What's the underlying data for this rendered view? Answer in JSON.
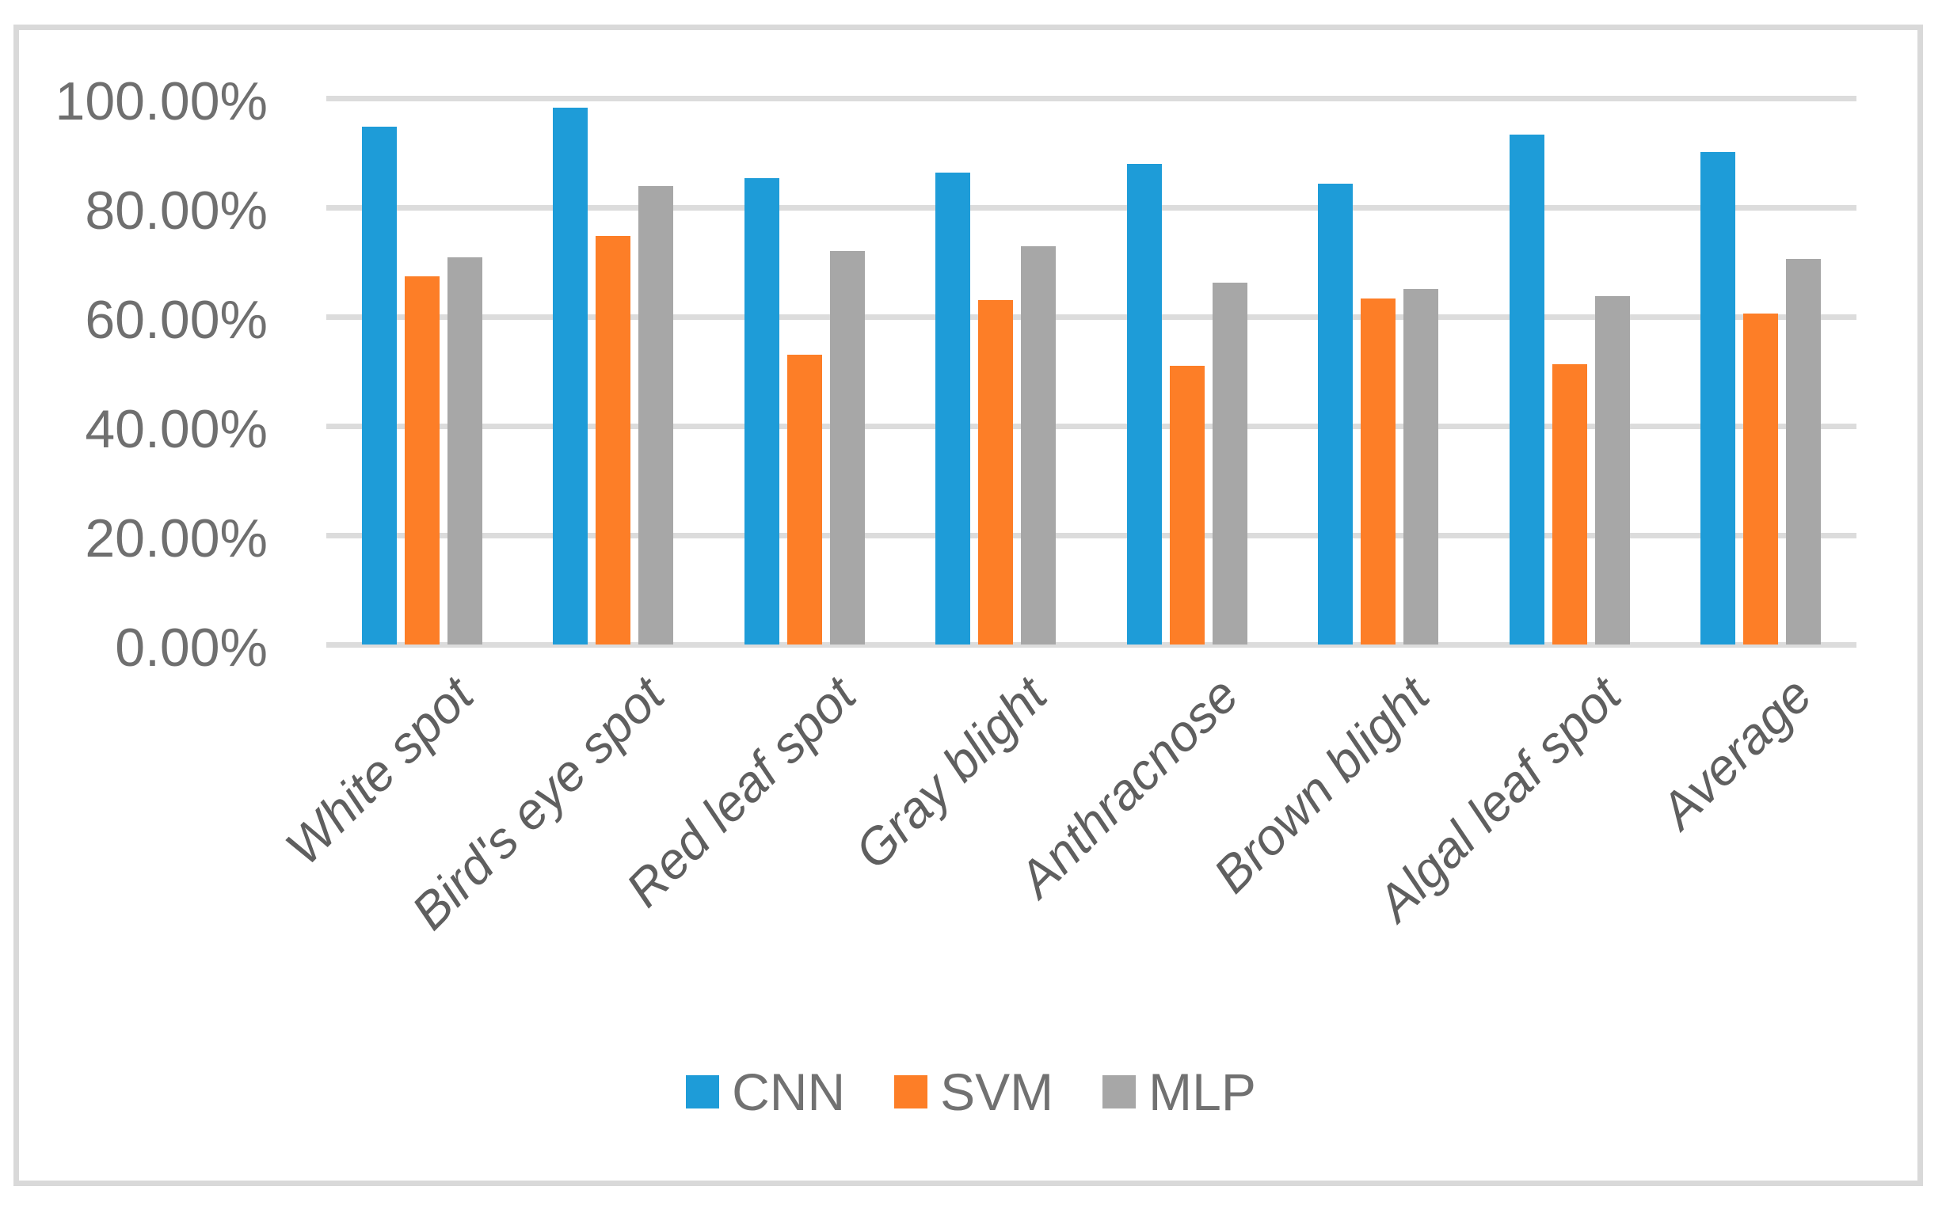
{
  "chart_data": {
    "type": "bar",
    "title": "",
    "xlabel": "",
    "ylabel": "",
    "categories": [
      "White spot",
      "Bird's eye spot",
      "Red leaf spot",
      "Gray blight",
      "Anthracnose",
      "Brown blight",
      "Algal leaf spot",
      "Average"
    ],
    "series": [
      {
        "name": "CNN",
        "color": "#1e9cd8",
        "values": [
          94.8,
          98.3,
          85.4,
          86.4,
          88.0,
          84.3,
          93.3,
          90.2
        ]
      },
      {
        "name": "SVM",
        "color": "#fd7e27",
        "values": [
          67.4,
          74.8,
          53.0,
          63.1,
          51.0,
          63.4,
          51.3,
          60.6
        ]
      },
      {
        "name": "MLP",
        "color": "#a7a7a7",
        "values": [
          70.8,
          83.9,
          72.0,
          72.9,
          66.2,
          65.1,
          63.8,
          70.6
        ]
      }
    ],
    "ylim": [
      0,
      100
    ],
    "y_tick_values": [
      100,
      80,
      60,
      40,
      20,
      0
    ],
    "y_tick_labels": [
      "100.00%",
      "80.00%",
      "60.00%",
      "40.00%",
      "20.00%",
      "0.00%"
    ],
    "grid": true,
    "legend_position": "bottom",
    "gridline_color": "#dcdcdc",
    "frame_border_color": "#d9d9d9",
    "axis_text_color": "#6f6f6f"
  }
}
